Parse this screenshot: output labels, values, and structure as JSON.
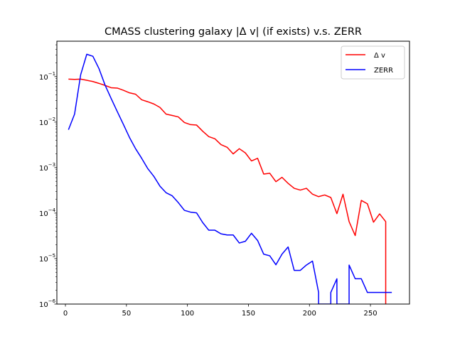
{
  "chart_data": {
    "type": "line",
    "title": "CMASS clustering galaxy |Δ v| (if exists) v.s. ZERR",
    "xlabel": "",
    "ylabel": "",
    "xlim": [
      -7,
      282
    ],
    "ylim": [
      1e-06,
      0.6
    ],
    "yscale": "log",
    "x_ticks": [
      {
        "value": 0,
        "label": "0"
      },
      {
        "value": 50,
        "label": "50"
      },
      {
        "value": 100,
        "label": "100"
      },
      {
        "value": 150,
        "label": "150"
      },
      {
        "value": 200,
        "label": "200"
      },
      {
        "value": 250,
        "label": "250"
      }
    ],
    "y_ticks": [
      {
        "value": 1e-06,
        "base": "10",
        "exp": "−6"
      },
      {
        "value": 1e-05,
        "base": "10",
        "exp": "−5"
      },
      {
        "value": 0.0001,
        "base": "10",
        "exp": "−4"
      },
      {
        "value": 0.001,
        "base": "10",
        "exp": "−3"
      },
      {
        "value": 0.01,
        "base": "10",
        "exp": "−2"
      },
      {
        "value": 0.1,
        "base": "10",
        "exp": "−1"
      }
    ],
    "grid": false,
    "legend_position": "top-right",
    "series": [
      {
        "name": "Δ v",
        "color": "#ff0000",
        "x": [
          2.5,
          7.5,
          12.5,
          17.5,
          22.5,
          27.5,
          32.5,
          37.5,
          42.5,
          47.5,
          52.5,
          57.5,
          62.5,
          67.5,
          72.5,
          77.5,
          82.5,
          87.5,
          92.5,
          97.5,
          102.5,
          107.5,
          112.5,
          117.5,
          122.5,
          127.5,
          132.5,
          137.5,
          142.5,
          147.5,
          152.5,
          157.5,
          162.5,
          167.5,
          172.5,
          177.5,
          182.5,
          187.5,
          192.5,
          197.5,
          202.5,
          207.5,
          212.5,
          217.5,
          222.5,
          227.5,
          232.5,
          237.5,
          242.5,
          247.5,
          252.5,
          257.5,
          262.5,
          262.5
        ],
        "y": [
          0.088,
          0.087,
          0.088,
          0.083,
          0.078,
          0.071,
          0.064,
          0.057,
          0.056,
          0.05,
          0.044,
          0.041,
          0.031,
          0.028,
          0.025,
          0.021,
          0.015,
          0.014,
          0.013,
          0.0098,
          0.0088,
          0.0086,
          0.0063,
          0.0048,
          0.0043,
          0.0032,
          0.0028,
          0.002,
          0.0026,
          0.0021,
          0.0014,
          0.0016,
          0.00072,
          0.00075,
          0.00049,
          0.00061,
          0.00045,
          0.00035,
          0.00032,
          0.00035,
          0.00026,
          0.00023,
          0.00025,
          0.00022,
          9.7e-05,
          0.00026,
          6.5e-05,
          3.2e-05,
          0.00019,
          0.00016,
          6.3e-05,
          9.6e-05,
          6.5e-05,
          1e-06
        ]
      },
      {
        "name": "ZERR",
        "color": "#0000ff",
        "x": [
          2.5,
          7.5,
          12.5,
          17.5,
          22.5,
          27.5,
          32.5,
          37.5,
          42.5,
          47.5,
          52.5,
          57.5,
          62.5,
          67.5,
          72.5,
          77.5,
          82.5,
          87.5,
          92.5,
          97.5,
          102.5,
          107.5,
          112.5,
          117.5,
          122.5,
          127.5,
          132.5,
          137.5,
          142.5,
          147.5,
          152.5,
          157.5,
          162.5,
          167.5,
          172.5,
          177.5,
          182.5,
          187.5,
          192.5,
          197.5,
          202.5,
          207.5,
          207.5,
          217.5,
          217.5,
          222.5,
          222.5,
          232.5,
          232.5,
          237.5,
          242.5,
          247.5,
          252.5,
          257.5,
          262.5,
          267.5
        ],
        "y": [
          0.0068,
          0.015,
          0.11,
          0.31,
          0.28,
          0.15,
          0.065,
          0.033,
          0.017,
          0.0089,
          0.0046,
          0.0026,
          0.0016,
          0.00095,
          0.00064,
          0.00039,
          0.00028,
          0.00024,
          0.00017,
          0.000115,
          0.000105,
          0.000101,
          6.2e-05,
          4.2e-05,
          4.2e-05,
          3.5e-05,
          3.3e-05,
          3.3e-05,
          2.2e-05,
          2.4e-05,
          3.6e-05,
          2.5e-05,
          1.25e-05,
          1.15e-05,
          7.3e-06,
          1.25e-05,
          1.8e-05,
          5.5e-06,
          5.5e-06,
          7.2e-06,
          8.8e-06,
          1.8e-06,
          1e-06,
          1e-06,
          1.8e-06,
          3.6e-06,
          1e-06,
          1e-06,
          7.2e-06,
          3.6e-06,
          3.6e-06,
          1.8e-06,
          1.8e-06,
          1.8e-06,
          1.8e-06,
          1.8e-06
        ]
      }
    ]
  }
}
